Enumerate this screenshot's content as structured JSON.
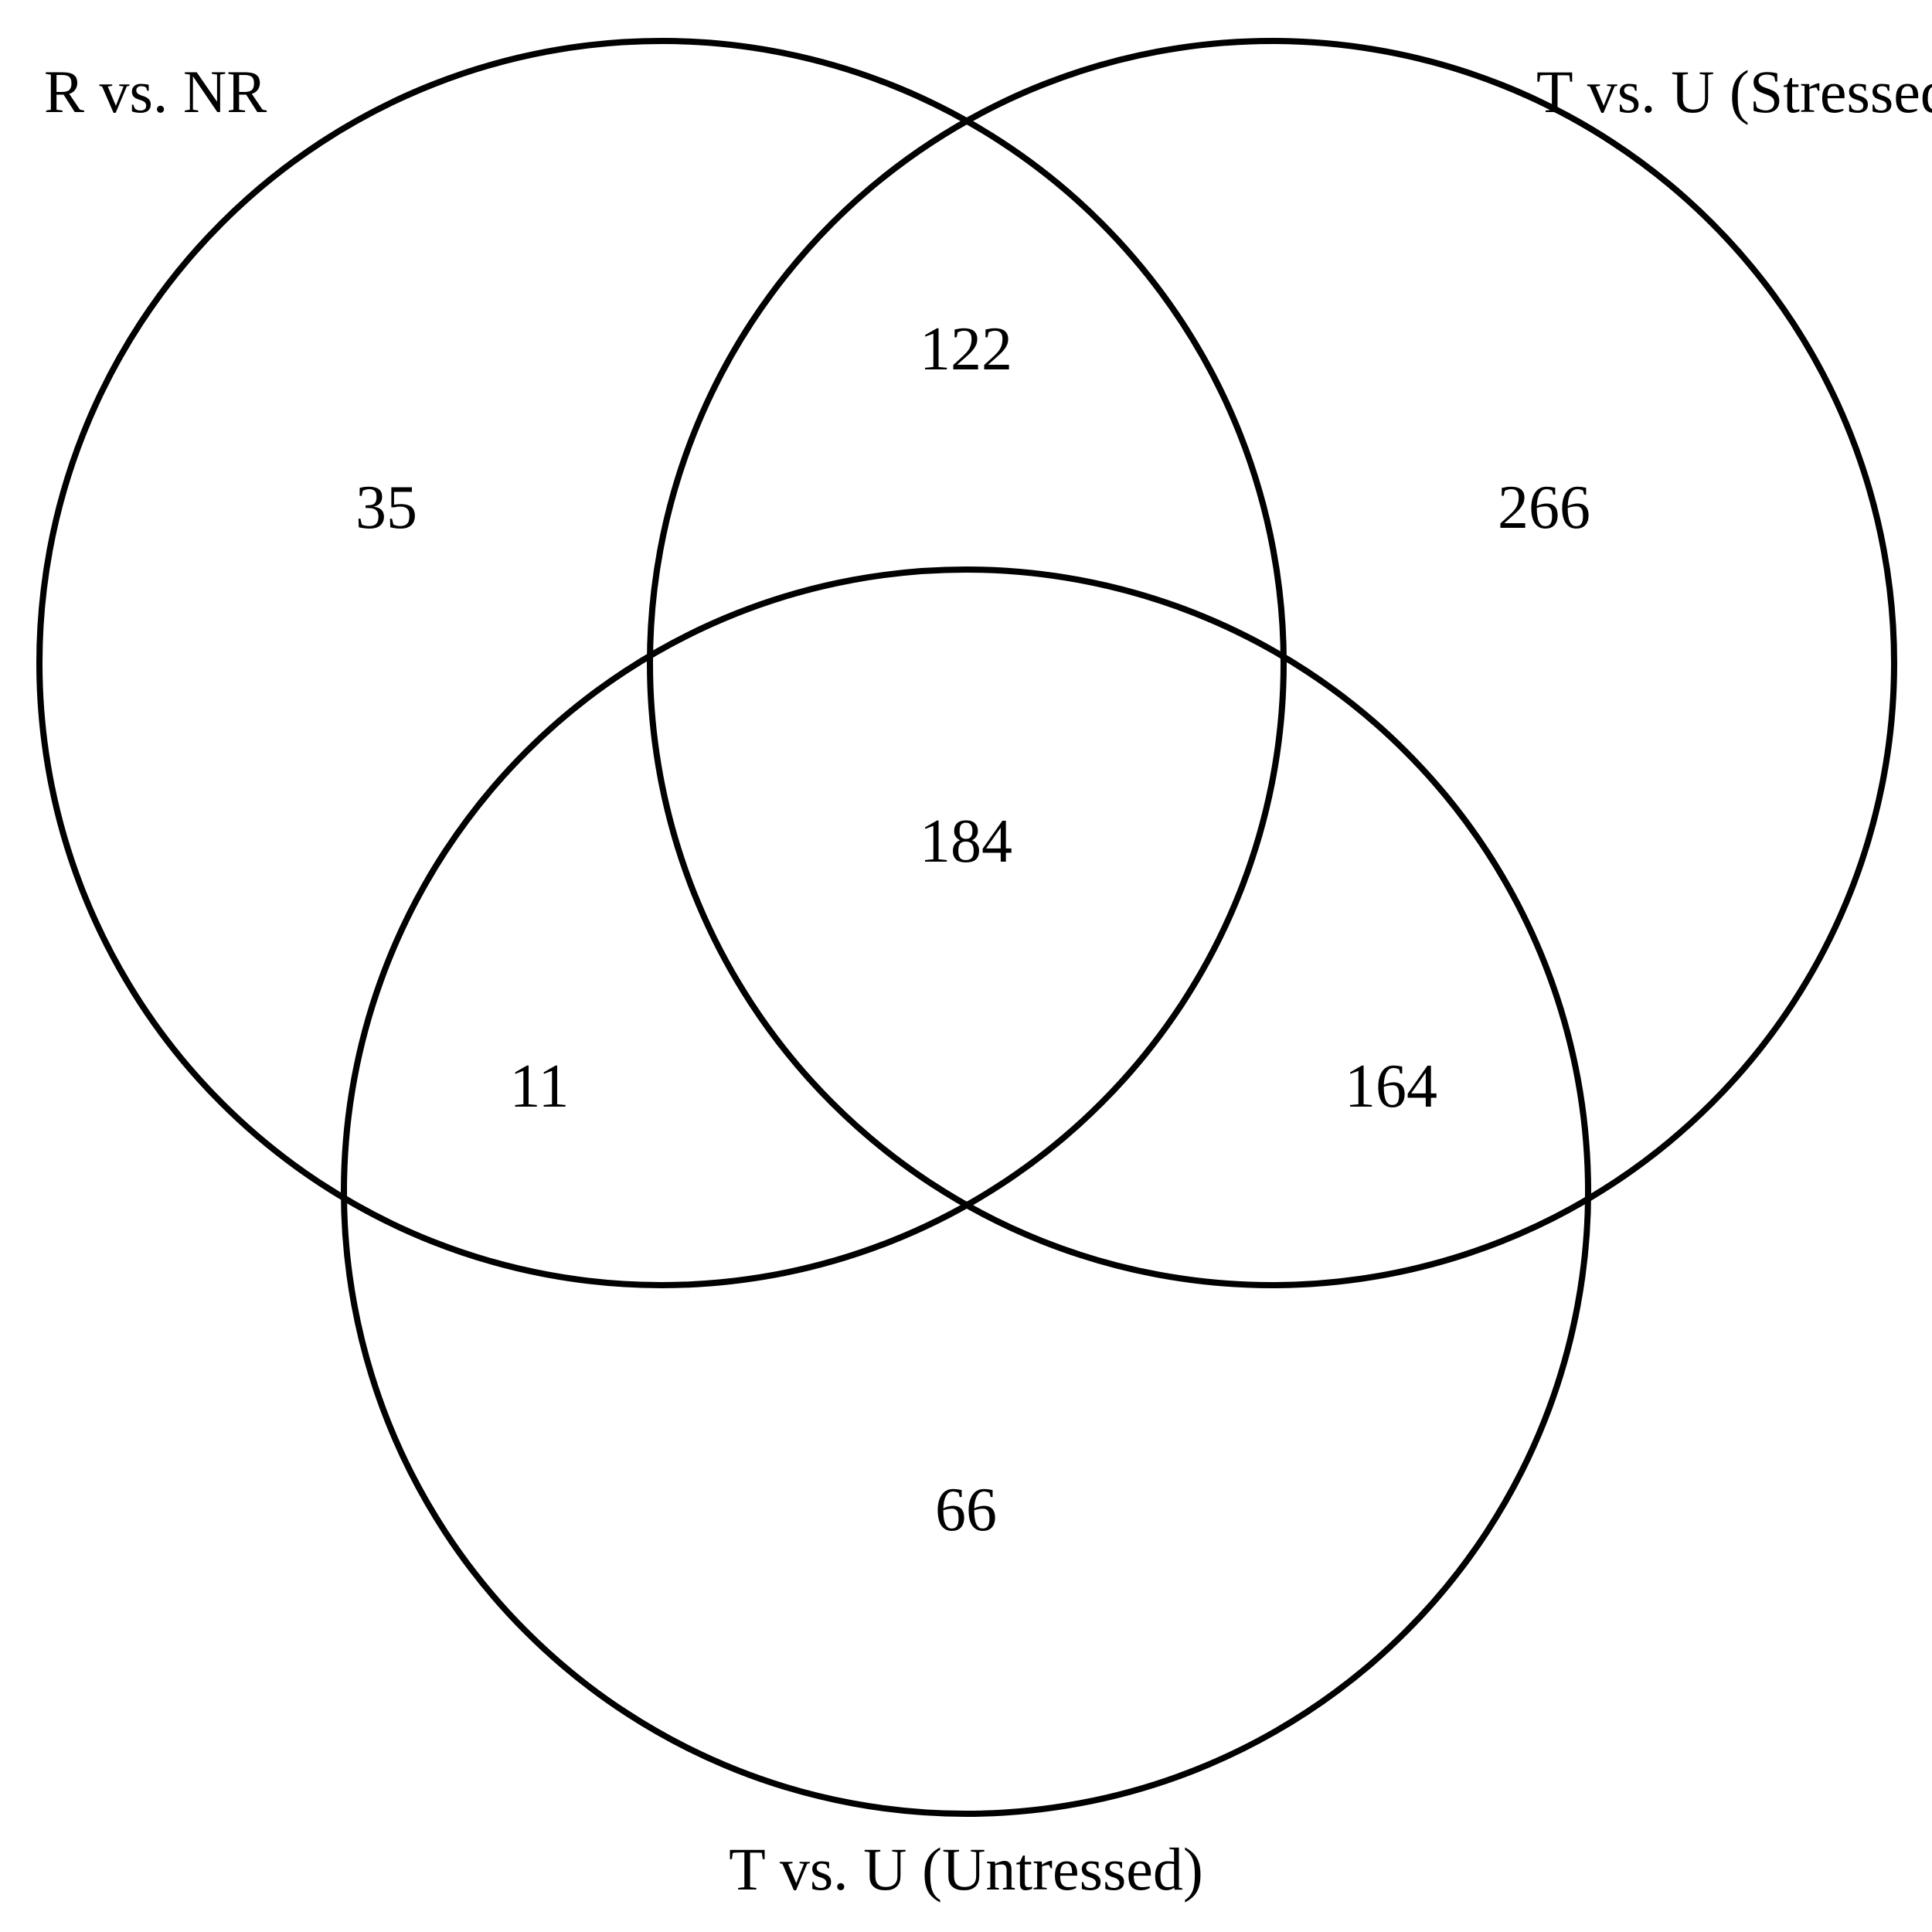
{
  "diagram": {
    "type": "venn",
    "sets": [
      {
        "id": "A",
        "label": "R vs. NR"
      },
      {
        "id": "B",
        "label": "T vs. U (Stressed)"
      },
      {
        "id": "C",
        "label": "T vs. U (Untressed)"
      }
    ],
    "regions": {
      "A_only": "35",
      "B_only": "266",
      "C_only": "66",
      "A_B": "122",
      "A_C": "11",
      "B_C": "164",
      "A_B_C": "184"
    }
  }
}
